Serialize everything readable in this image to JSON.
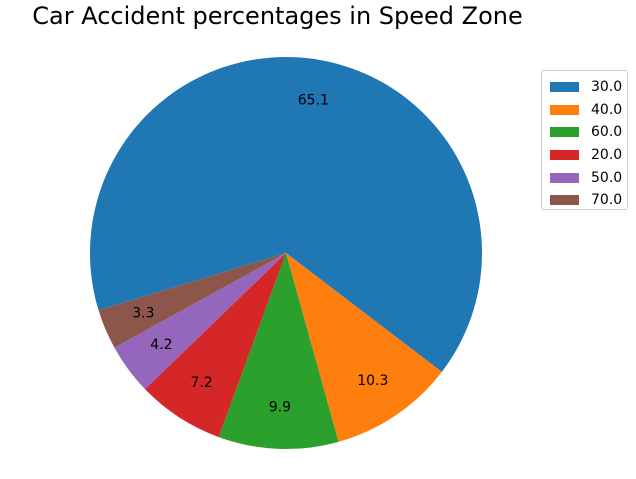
{
  "chart_data": {
    "type": "pie",
    "title": "Car Accident percentages in Speed Zone",
    "labels": [
      "30.0",
      "40.0",
      "60.0",
      "20.0",
      "50.0",
      "70.0"
    ],
    "values": [
      65.1,
      10.3,
      9.9,
      7.2,
      4.2,
      3.3
    ],
    "value_labels": [
      "65.1",
      "10.3",
      "9.9",
      "7.2",
      "4.2",
      "3.3"
    ],
    "colors": [
      "#1f77b4",
      "#ff7f0e",
      "#2ca02c",
      "#d62728",
      "#9467bd",
      "#8c564b"
    ],
    "start_angle": 197,
    "direction": "clockwise",
    "legend_placement": "upper-right"
  }
}
